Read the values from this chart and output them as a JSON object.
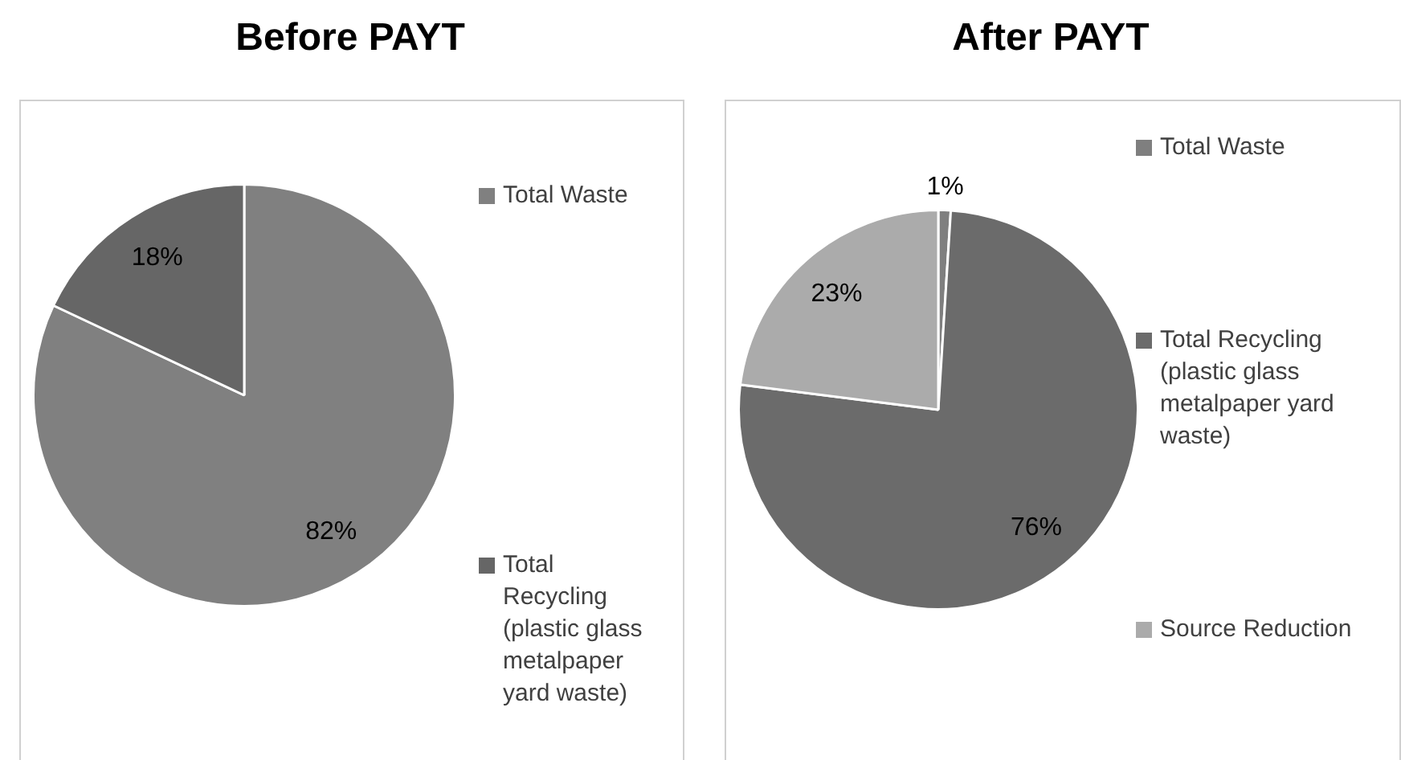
{
  "chart_data": [
    {
      "type": "pie",
      "title": "Before PAYT",
      "categories": [
        "Total Waste",
        "Total Recycling (plastic glass metalpaper yard waste)"
      ],
      "values": [
        82,
        18
      ],
      "colors": [
        "#808080",
        "#666666"
      ],
      "value_labels": [
        "82%",
        "18%"
      ],
      "legend": "right"
    },
    {
      "type": "pie",
      "title": "After PAYT",
      "categories": [
        "Total Waste",
        "Total Recycling (plastic glass metalpaper yard waste)",
        "Source Reduction"
      ],
      "values": [
        1,
        76,
        23
      ],
      "colors": [
        "#7f7f7f",
        "#6b6b6b",
        "#ababab"
      ],
      "value_labels": [
        "1%",
        "76%",
        "23%"
      ],
      "legend": "right"
    }
  ]
}
